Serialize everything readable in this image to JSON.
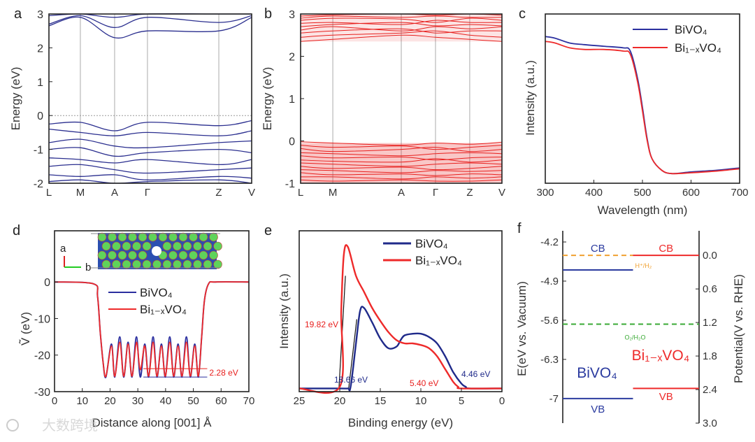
{
  "watermark": "大数跨境",
  "chart_data": [
    {
      "panel": "a",
      "type": "line",
      "title": "a",
      "ylabel": "Energy (eV)",
      "ylim": [
        -2,
        3
      ],
      "yticks": [
        -2,
        -1,
        0,
        1,
        2,
        3
      ],
      "kpoints": [
        {
          "label": "L",
          "k": 0
        },
        {
          "label": "M",
          "k": 0.155
        },
        {
          "label": "A",
          "k": 0.324
        },
        {
          "label": "Γ",
          "k": 0.486
        },
        {
          "label": "Z",
          "k": 0.838
        },
        {
          "label": "V",
          "k": 1.0
        }
      ],
      "fermi_level": 0,
      "color": "#2b2f8f",
      "bands": [
        [
          2.7,
          2.95,
          2.6,
          2.9,
          2.75,
          2.95
        ],
        [
          2.65,
          2.9,
          2.3,
          2.5,
          2.5,
          2.9
        ],
        [
          2.95,
          3.0,
          2.9,
          3.0,
          3.0,
          3.0
        ],
        [
          -0.25,
          -0.2,
          -0.45,
          -0.2,
          -0.3,
          -0.15
        ],
        [
          -0.4,
          -0.5,
          -0.6,
          -0.5,
          -0.6,
          -0.45
        ],
        [
          -0.8,
          -0.7,
          -0.9,
          -0.95,
          -0.8,
          -0.75
        ],
        [
          -1.0,
          -0.95,
          -1.2,
          -1.1,
          -1.0,
          -1.1
        ],
        [
          -1.25,
          -1.3,
          -1.4,
          -1.3,
          -1.45,
          -1.3
        ],
        [
          -1.5,
          -1.45,
          -1.6,
          -1.7,
          -1.6,
          -1.55
        ],
        [
          -1.75,
          -1.8,
          -1.75,
          -1.9,
          -1.8,
          -1.85
        ],
        [
          -1.95,
          -1.9,
          -2.0,
          -1.95,
          -1.9,
          -2.0
        ]
      ]
    },
    {
      "panel": "b",
      "type": "line",
      "title": "b",
      "ylabel": "Energy (eV)",
      "ylim": [
        -1,
        3
      ],
      "yticks": [
        -1,
        0,
        1,
        2,
        3
      ],
      "kpoints": [
        {
          "label": "L",
          "k": 0
        },
        {
          "label": "M",
          "k": 0.16
        },
        {
          "label": "A",
          "k": 0.5
        },
        {
          "label": "Γ",
          "k": 0.67
        },
        {
          "label": "Z",
          "k": 0.84
        },
        {
          "label": "V",
          "k": 1.0
        }
      ],
      "color": "#e8201e",
      "bands": [
        [
          2.35,
          2.4,
          2.5,
          2.45,
          2.4,
          2.35
        ],
        [
          2.45,
          2.5,
          2.55,
          2.6,
          2.5,
          2.45
        ],
        [
          2.55,
          2.6,
          2.65,
          2.55,
          2.6,
          2.6
        ],
        [
          2.62,
          2.7,
          2.6,
          2.7,
          2.65,
          2.7
        ],
        [
          2.7,
          2.75,
          2.8,
          2.72,
          2.75,
          2.72
        ],
        [
          2.78,
          2.8,
          2.75,
          2.85,
          2.8,
          2.8
        ],
        [
          2.85,
          2.9,
          2.88,
          2.8,
          2.9,
          2.85
        ],
        [
          2.9,
          2.95,
          2.92,
          2.95,
          2.92,
          2.92
        ],
        [
          2.95,
          2.98,
          3.0,
          2.97,
          3.0,
          2.97
        ],
        [
          -0.02,
          -0.05,
          -0.1,
          -0.05,
          -0.08,
          -0.03
        ],
        [
          -0.1,
          -0.15,
          -0.12,
          -0.2,
          -0.15,
          -0.1
        ],
        [
          -0.18,
          -0.25,
          -0.2,
          -0.15,
          -0.25,
          -0.2
        ],
        [
          -0.28,
          -0.3,
          -0.35,
          -0.3,
          -0.28,
          -0.3
        ],
        [
          -0.35,
          -0.4,
          -0.38,
          -0.45,
          -0.4,
          -0.38
        ],
        [
          -0.45,
          -0.48,
          -0.5,
          -0.42,
          -0.5,
          -0.45
        ],
        [
          -0.52,
          -0.55,
          -0.6,
          -0.55,
          -0.52,
          -0.55
        ],
        [
          -0.6,
          -0.65,
          -0.62,
          -0.68,
          -0.65,
          -0.6
        ],
        [
          -0.68,
          -0.7,
          -0.75,
          -0.7,
          -0.72,
          -0.7
        ],
        [
          -0.75,
          -0.8,
          -0.78,
          -0.82,
          -0.78,
          -0.8
        ],
        [
          -0.85,
          -0.85,
          -0.9,
          -0.85,
          -0.88,
          -0.85
        ],
        [
          -0.92,
          -0.95,
          -0.92,
          -0.95,
          -0.95,
          -0.92
        ]
      ]
    },
    {
      "panel": "c",
      "type": "line",
      "title": "c",
      "xlabel": "Wavelength (nm)",
      "ylabel": "Intensity (a.u.)",
      "xlim": [
        300,
        700
      ],
      "xticks": [
        300,
        400,
        500,
        600,
        700
      ],
      "ylim": [
        -0.05,
        1.0
      ],
      "legend": "top-right",
      "x": [
        300,
        320,
        350,
        380,
        420,
        460,
        475,
        490,
        500,
        510,
        520,
        540,
        560,
        600,
        650,
        700
      ],
      "series": [
        {
          "name": "BiVO₄",
          "color": "#2b2f9f",
          "values": [
            0.86,
            0.85,
            0.82,
            0.81,
            0.8,
            0.79,
            0.77,
            0.6,
            0.42,
            0.22,
            0.1,
            0.03,
            0.01,
            0.02,
            0.03,
            0.045
          ]
        },
        {
          "name": "Bi₁₋ₓVO₄",
          "color": "#ee2a2a",
          "values": [
            0.83,
            0.82,
            0.79,
            0.78,
            0.78,
            0.77,
            0.75,
            0.58,
            0.4,
            0.21,
            0.1,
            0.03,
            0.01,
            0.015,
            0.025,
            0.04
          ]
        }
      ]
    },
    {
      "panel": "d",
      "type": "line",
      "title": "d",
      "xlabel": "Distance along [001] Å",
      "ylabel": "Ṽ (eV)",
      "xlim": [
        0,
        70
      ],
      "xticks": [
        0,
        10,
        20,
        30,
        40,
        50,
        60,
        70
      ],
      "ylim": [
        -30,
        14
      ],
      "yticks": [
        0,
        -10,
        -20,
        -30
      ],
      "legend": "center",
      "inset_axes": {
        "a": "a",
        "b": "b"
      },
      "annotation": {
        "text": "2.28 eV",
        "levels": [
          -23.7,
          -26.0
        ],
        "x_range": [
          32,
          55
        ]
      },
      "series": [
        {
          "name": "BiVO₄",
          "color": "#2b2f9f",
          "x": [
            0,
            14,
            15.5,
            16.5,
            17.5,
            18.5,
            20.5,
            21.7,
            23.5,
            24.9,
            26.5,
            27.9,
            29.5,
            30.9,
            32.5,
            33.9,
            35.5,
            36.9,
            38.5,
            39.9,
            41.5,
            42.9,
            44.5,
            45.9,
            47.5,
            48.9,
            50.5,
            51.8,
            53,
            54,
            55.5,
            58,
            70
          ],
          "y": [
            0,
            -0.5,
            -4,
            -14,
            -22,
            -26,
            -17,
            -26,
            -15,
            -26,
            -16.5,
            -26,
            -15,
            -26,
            -17,
            -26,
            -15,
            -26,
            -17,
            -26,
            -15,
            -26,
            -17,
            -26,
            -15,
            -26,
            -17,
            -26,
            -15,
            -5,
            -0.5,
            0,
            0
          ]
        },
        {
          "name": "Bi₁₋ₓVO₄",
          "color": "#ee2a2a",
          "x": [
            0,
            14,
            15.5,
            16.5,
            17.5,
            18.5,
            20.5,
            21.7,
            23.5,
            24.9,
            26.5,
            27.9,
            29.5,
            30.9,
            32.5,
            33.9,
            35.5,
            36.9,
            38.5,
            39.9,
            41.5,
            42.9,
            44.5,
            45.9,
            47.5,
            48.9,
            50.5,
            51.8,
            53,
            54,
            55.5,
            58,
            70
          ],
          "y": [
            0,
            -0.5,
            -4,
            -14,
            -22,
            -25.8,
            -17.5,
            -25.8,
            -16.5,
            -25.8,
            -17,
            -25.8,
            -16.5,
            -24,
            -17.5,
            -25.8,
            -16.5,
            -25.8,
            -17.5,
            -25.8,
            -16.5,
            -25.8,
            -17.5,
            -25.8,
            -16.5,
            -25.8,
            -17.5,
            -25.8,
            -15,
            -5,
            -0.5,
            0,
            0
          ]
        }
      ]
    },
    {
      "panel": "e",
      "type": "line",
      "title": "e",
      "xlabel": "Binding energy (eV)",
      "ylabel": "Intensity (a.u.)",
      "xlim": [
        25,
        0
      ],
      "xticks": [
        25,
        20,
        15,
        10,
        5,
        0
      ],
      "ylim": [
        0,
        1
      ],
      "legend": "top-right",
      "series": [
        {
          "name": "BiVO₄",
          "color": "#1f2a8a",
          "x": [
            25,
            20,
            19,
            18.66,
            18,
            17.5,
            17,
            16,
            15,
            14,
            13,
            12.5,
            12,
            11,
            10,
            9,
            8,
            7,
            6,
            5,
            4.46,
            4,
            0
          ],
          "y": [
            0.02,
            0.02,
            0.02,
            0.03,
            0.3,
            0.5,
            0.52,
            0.43,
            0.33,
            0.27,
            0.28,
            0.32,
            0.35,
            0.36,
            0.36,
            0.34,
            0.3,
            0.22,
            0.12,
            0.05,
            0.03,
            0.02,
            0.02
          ]
        },
        {
          "name": "Bi₁₋ₓVO₄",
          "color": "#ee2a2a",
          "x": [
            25,
            20,
            19.82,
            19.5,
            19,
            18,
            17,
            16,
            15,
            14,
            13,
            12,
            11,
            10,
            9,
            8,
            7,
            6,
            5.4,
            5,
            0
          ],
          "y": [
            0.02,
            0.03,
            0.5,
            0.85,
            0.9,
            0.72,
            0.62,
            0.52,
            0.44,
            0.37,
            0.32,
            0.3,
            0.3,
            0.29,
            0.27,
            0.22,
            0.14,
            0.06,
            0.03,
            0.02,
            0.02
          ]
        }
      ],
      "annotations": [
        {
          "text": "19.82 eV",
          "color": "#e8201e",
          "x": 19.82
        },
        {
          "text": "18.66 eV",
          "color": "#1f2a8a",
          "x": 18.66
        },
        {
          "text": "5.40 eV",
          "color": "#e8201e",
          "x": 5.4
        },
        {
          "text": "4.46 eV",
          "color": "#1f2a8a",
          "x": 4.46
        }
      ]
    },
    {
      "panel": "f",
      "type": "diagram",
      "title": "f",
      "ylabel_left": "E(eV vs. Vacuum)",
      "ylabel_right": "Potential(V vs. RHE)",
      "ylim_left": [
        -7.44,
        -4.0
      ],
      "yticks_left": [
        -4.2,
        -4.9,
        -5.6,
        -6.3,
        -7.0
      ],
      "yticks_right": [
        "0.0",
        "0.6",
        "1.2",
        "1.8",
        "2.4",
        "3.0"
      ],
      "rhe_offset": -4.44,
      "materials": [
        {
          "name": "BiVO₄",
          "color": "#2b3b9f",
          "cb": -4.7,
          "vb": -7.0,
          "cb_label": "CB",
          "vb_label": "VB"
        },
        {
          "name": "Bi₁₋ₓVO₄",
          "color": "#ee2a2a",
          "cb": -4.44,
          "vb": -6.82,
          "cb_label": "CB",
          "vb_label": "VB"
        }
      ],
      "redox": [
        {
          "label": "H⁺/H₂",
          "color": "#f0a030",
          "e": -4.44
        },
        {
          "label": "O₂/H₂O",
          "color": "#3aaa35",
          "e": -5.67
        }
      ]
    }
  ]
}
